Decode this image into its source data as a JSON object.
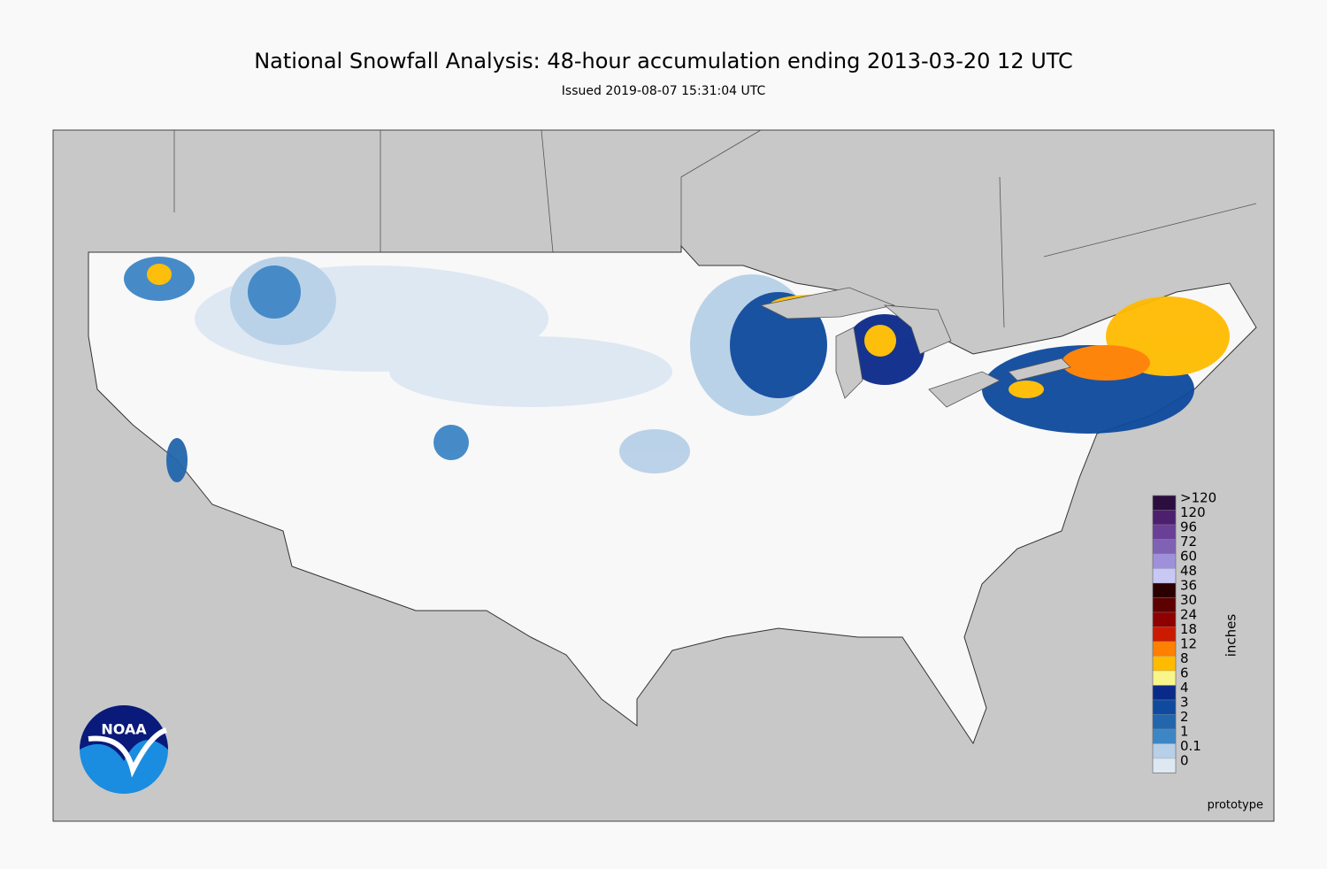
{
  "title": "National Snowfall Analysis: 48-hour accumulation ending 2013-03-20 12 UTC",
  "subtitle": "Issued 2019-08-07 15:31:04 UTC",
  "legend": {
    "unit": "inches",
    "labels": [
      ">120",
      "120",
      "96",
      "72",
      "60",
      "48",
      "36",
      "30",
      "24",
      "18",
      "12",
      "8",
      "6",
      "4",
      "3",
      "2",
      "1",
      "0.1",
      "0"
    ],
    "colors": [
      "#2b0d3e",
      "#4d1f6f",
      "#6a3f98",
      "#8062b4",
      "#9f90dc",
      "#c8c8f5",
      "#2b0000",
      "#5e0000",
      "#8f0000",
      "#cc1a00",
      "#ff7f00",
      "#ffbb00",
      "#f8f58a",
      "#0a2a8a",
      "#0f4a9e",
      "#2266ad",
      "#3d86c6",
      "#b7d0e7",
      "#dde8f3"
    ]
  },
  "logo": "NOAA",
  "note": "prototype"
}
